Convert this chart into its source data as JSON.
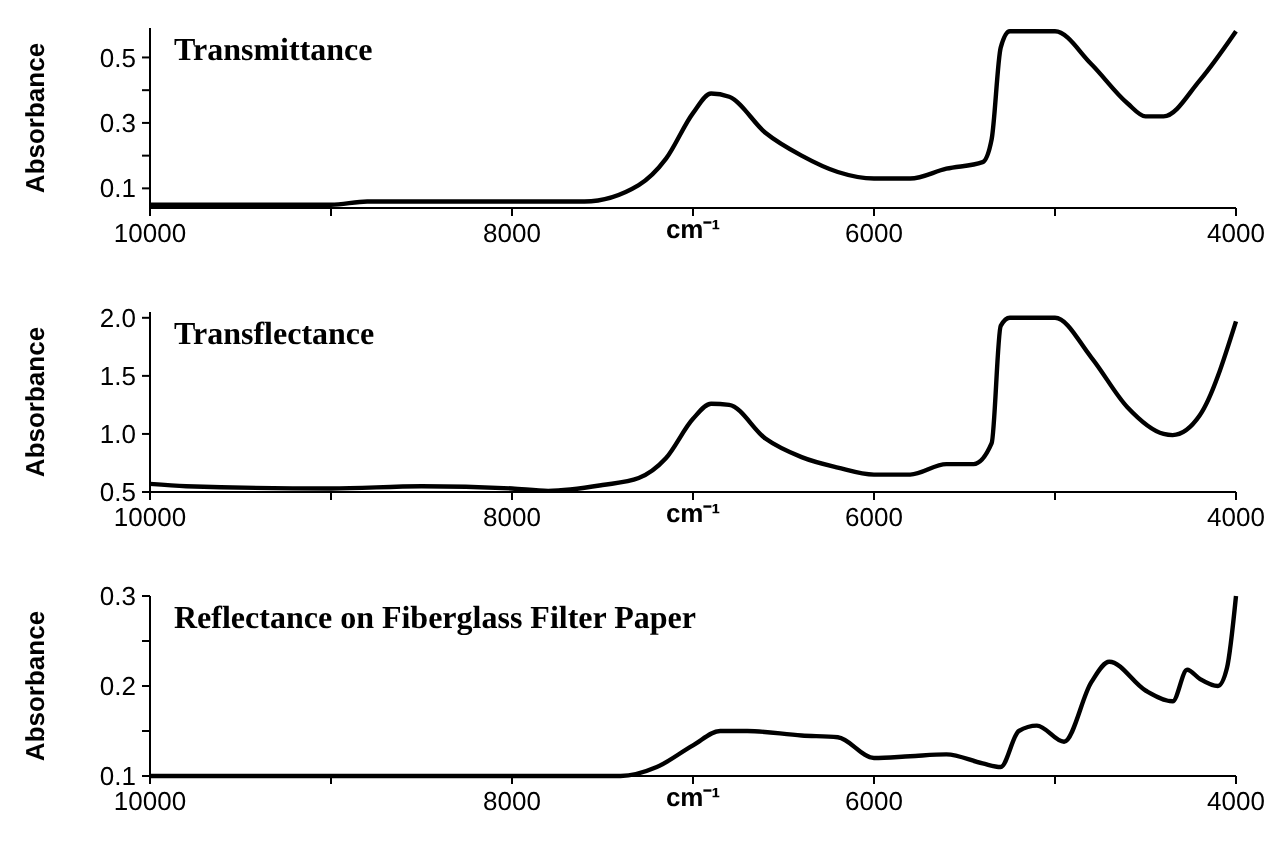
{
  "chart_data": [
    {
      "type": "line",
      "title": "Transmittance",
      "xlabel": "cm⁻¹",
      "ylabel": "Absorbance",
      "xlim": [
        10000,
        4000
      ],
      "xticks": [
        10000,
        {
          "value": 9000,
          "label": null
        },
        8000,
        {
          "value": 7000,
          "label": null
        },
        6000,
        {
          "value": 5000,
          "label": null
        },
        4000
      ],
      "ylim": [
        0.04,
        0.59
      ],
      "yticks": [
        0.1,
        {
          "value": 0.2,
          "label": null
        },
        0.3,
        {
          "value": 0.4,
          "label": null
        },
        0.5
      ],
      "grid": false,
      "marker": "none",
      "line_style": "solid",
      "x": [
        10000,
        9000,
        8800,
        7600,
        7300,
        7150,
        7000,
        6900,
        6800,
        6600,
        6400,
        6200,
        6000,
        5800,
        5600,
        5400,
        5350,
        5300,
        5250,
        5000,
        4800,
        4600,
        4500,
        4400,
        4200,
        4000
      ],
      "series": [
        {
          "color": "#000000",
          "values": [
            0.05,
            0.05,
            0.06,
            0.06,
            0.11,
            0.19,
            0.33,
            0.39,
            0.38,
            0.27,
            0.2,
            0.15,
            0.13,
            0.13,
            0.16,
            0.18,
            0.25,
            0.53,
            0.58,
            0.58,
            0.48,
            0.36,
            0.32,
            0.32,
            0.43,
            0.58
          ]
        }
      ]
    },
    {
      "type": "line",
      "title": "Transflectance",
      "xlabel": "cm⁻¹",
      "ylabel": "Absorbance",
      "xlim": [
        10000,
        4000
      ],
      "xticks": [
        10000,
        {
          "value": 9000,
          "label": null
        },
        8000,
        {
          "value": 7000,
          "label": null
        },
        6000,
        {
          "value": 5000,
          "label": null
        },
        4000
      ],
      "ylim": [
        0.5,
        2.05
      ],
      "yticks": [
        0.5,
        {
          "value": 1,
          "label": "1.0"
        },
        1.5,
        {
          "value": 2,
          "label": "2.0"
        }
      ],
      "grid": false,
      "marker": "none",
      "line_style": "solid",
      "x": [
        10000,
        9800,
        9000,
        8500,
        8000,
        7800,
        7500,
        7300,
        7150,
        7000,
        6900,
        6800,
        6600,
        6400,
        6200,
        6000,
        5800,
        5600,
        5450,
        5350,
        5300,
        5250,
        5000,
        4800,
        4600,
        4400,
        4350,
        4200,
        4000
      ],
      "series": [
        {
          "color": "#000000",
          "values": [
            0.57,
            0.55,
            0.53,
            0.55,
            0.53,
            0.51,
            0.56,
            0.62,
            0.79,
            1.13,
            1.26,
            1.25,
            0.96,
            0.8,
            0.71,
            0.65,
            0.65,
            0.74,
            0.74,
            0.92,
            1.93,
            2.0,
            2.0,
            1.66,
            1.23,
            1.0,
            0.99,
            1.16,
            1.97
          ]
        }
      ]
    },
    {
      "type": "line",
      "title": "Reflectance on Fiberglass Filter Paper",
      "xlabel": "cm⁻¹",
      "ylabel": "Absorbance",
      "xlim": [
        10000,
        4000
      ],
      "xticks": [
        10000,
        {
          "value": 9000,
          "label": null
        },
        8000,
        {
          "value": 7000,
          "label": null
        },
        6000,
        {
          "value": 5000,
          "label": null
        },
        4000
      ],
      "ylim": [
        0.1,
        0.3
      ],
      "yticks": [
        0.1,
        {
          "value": 0.15,
          "label": null
        },
        0.2,
        {
          "value": 0.25,
          "label": null
        },
        0.3
      ],
      "grid": false,
      "marker": "none",
      "line_style": "solid",
      "x": [
        10000,
        8000,
        7800,
        7400,
        7200,
        7000,
        6850,
        6700,
        6400,
        6200,
        6000,
        5800,
        5600,
        5400,
        5300,
        5200,
        5100,
        4950,
        4800,
        4700,
        4500,
        4350,
        4270,
        4200,
        4100,
        4050,
        4000
      ],
      "series": [
        {
          "color": "#000000",
          "values": [
            0.1,
            0.1,
            0.1,
            0.1,
            0.11,
            0.134,
            0.15,
            0.15,
            0.145,
            0.143,
            0.12,
            0.122,
            0.124,
            0.114,
            0.11,
            0.15,
            0.156,
            0.138,
            0.204,
            0.227,
            0.195,
            0.183,
            0.218,
            0.208,
            0.2,
            0.22,
            0.3
          ]
        }
      ]
    }
  ]
}
